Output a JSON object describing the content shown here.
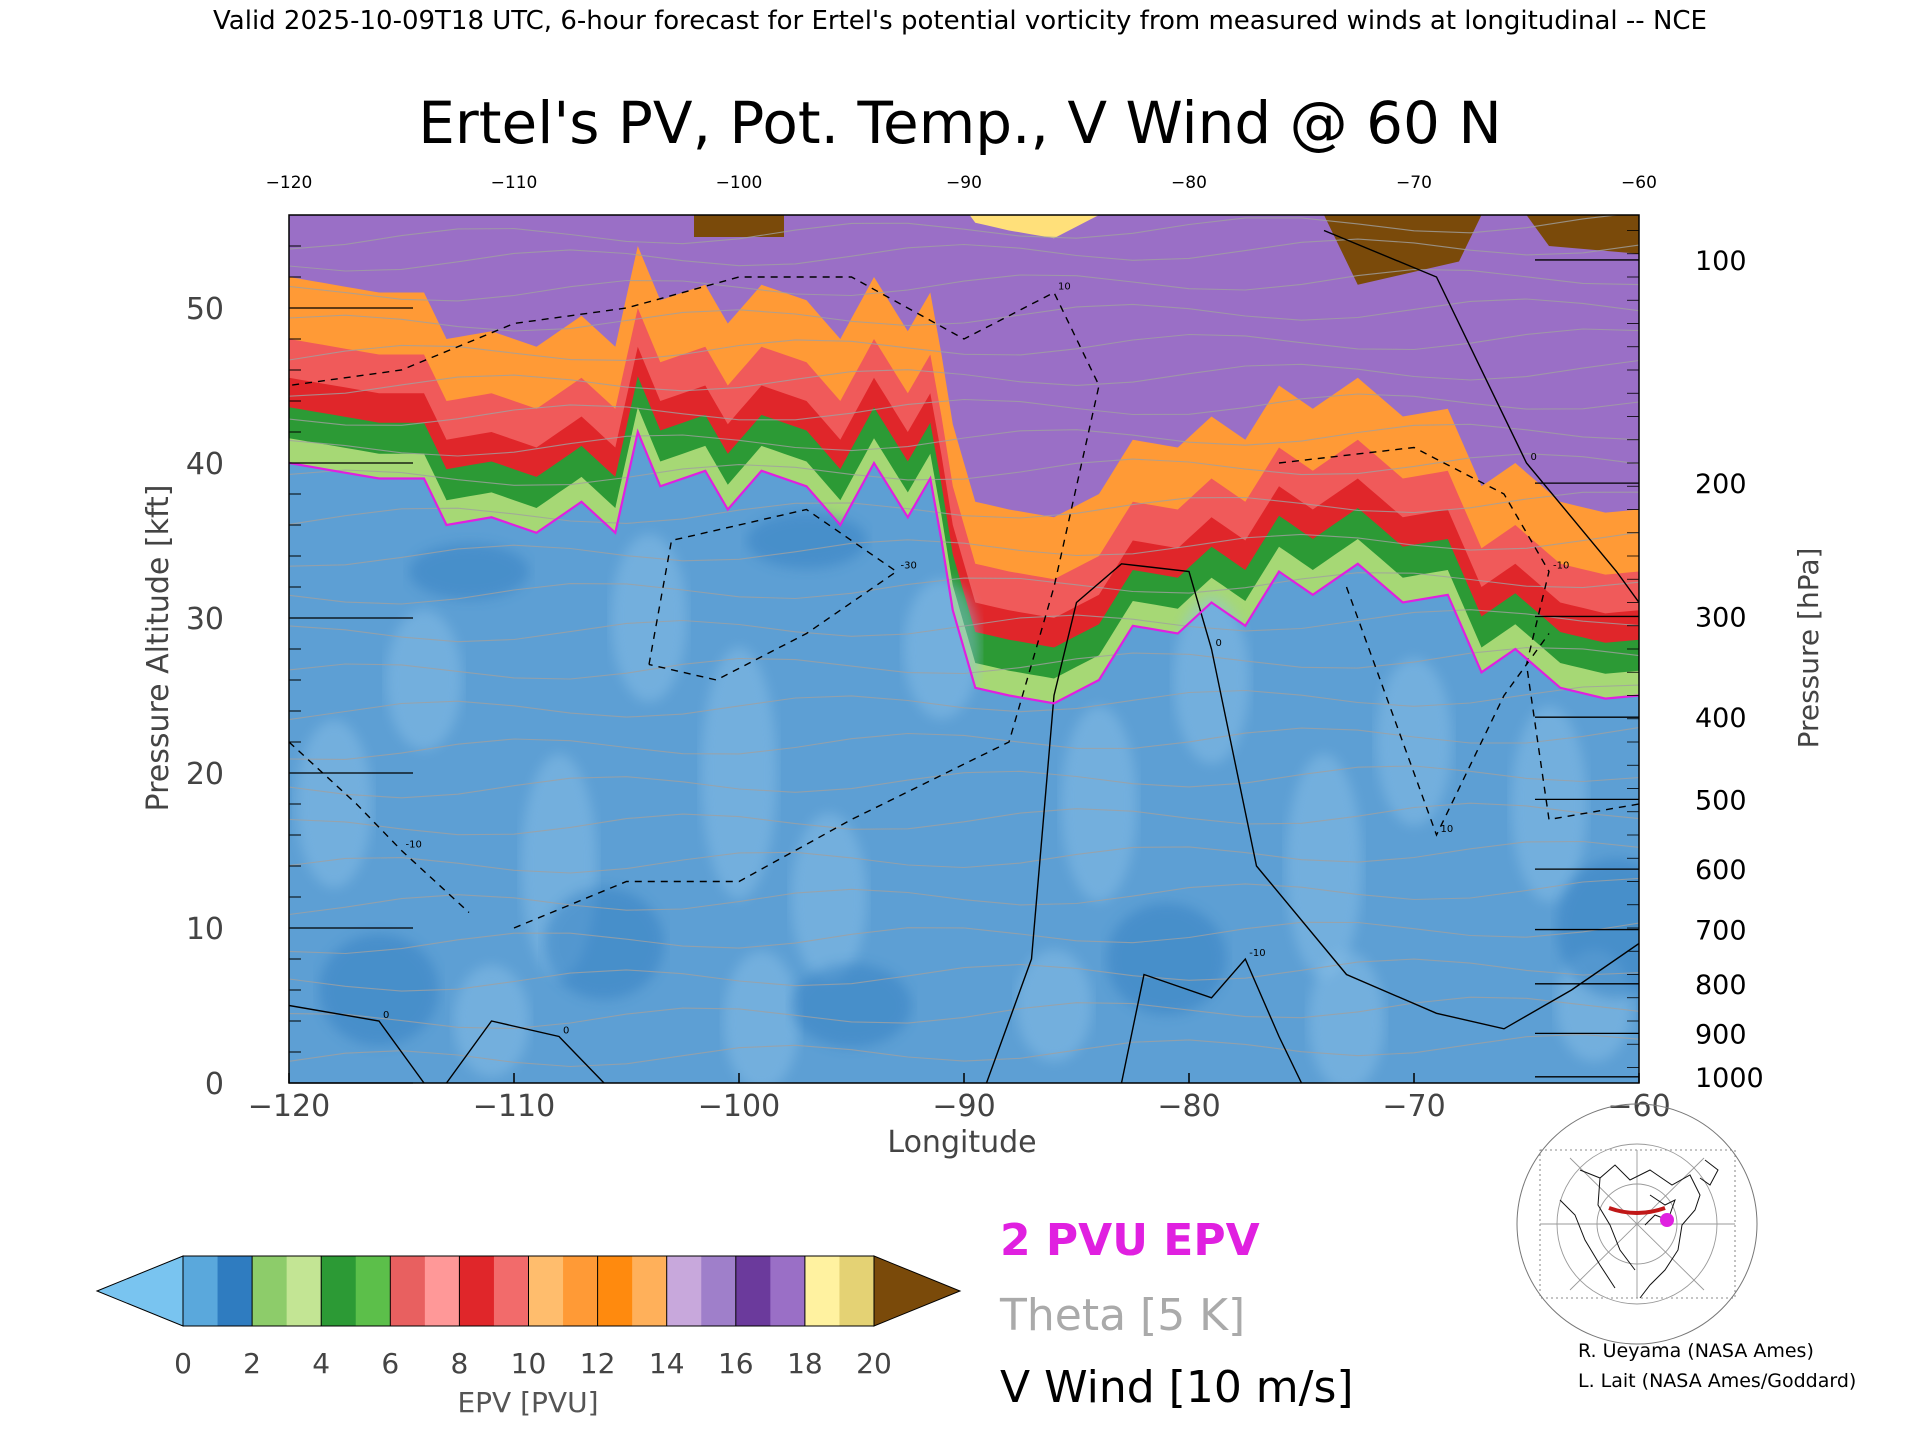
{
  "header": {
    "valid_line": "Valid 2025-10-09T18 UTC, 6-hour forecast for Ertel's potential vorticity from measured winds at longitudinal -- NCE"
  },
  "chart_data": {
    "type": "heatmap",
    "title": "Ertel's PV, Pot. Temp., V Wind @ 60 N",
    "xlabel": "Longitude",
    "ylabel": "Pressure Altitude [kft]",
    "y2label": "Pressure [hPa]",
    "xlim": [
      -120,
      -60
    ],
    "ylim": [
      0,
      56
    ],
    "x_ticks": [
      -120,
      -110,
      -100,
      -90,
      -80,
      -70,
      -60
    ],
    "y_ticks": [
      0,
      10,
      20,
      30,
      40,
      50
    ],
    "pressure_ticks": [
      {
        "hPa": "100",
        "kft": 53.1
      },
      {
        "hPa": "200",
        "kft": 38.7
      },
      {
        "hPa": "300",
        "kft": 30.1
      },
      {
        "hPa": "400",
        "kft": 23.6
      },
      {
        "hPa": "500",
        "kft": 18.3
      },
      {
        "hPa": "600",
        "kft": 13.8
      },
      {
        "hPa": "700",
        "kft": 9.9
      },
      {
        "hPa": "800",
        "kft": 6.4
      },
      {
        "hPa": "900",
        "kft": 3.2
      },
      {
        "hPa": "1000",
        "kft": 0.4
      }
    ],
    "grid": false,
    "tropopause_2pvu_kft": [
      [
        -120,
        40
      ],
      [
        -118,
        39.5
      ],
      [
        -116,
        39
      ],
      [
        -114,
        39
      ],
      [
        -113,
        36
      ],
      [
        -111,
        36.5
      ],
      [
        -109,
        35.5
      ],
      [
        -107,
        37.5
      ],
      [
        -105.5,
        35.5
      ],
      [
        -104.5,
        42
      ],
      [
        -103.5,
        38.5
      ],
      [
        -101.5,
        39.5
      ],
      [
        -100.5,
        37
      ],
      [
        -99,
        39.5
      ],
      [
        -97,
        38.5
      ],
      [
        -95.5,
        36
      ],
      [
        -94,
        40
      ],
      [
        -92.5,
        36.5
      ],
      [
        -91.5,
        39
      ],
      [
        -91,
        35
      ],
      [
        -90.5,
        30.5
      ],
      [
        -89.5,
        25.5
      ],
      [
        -88,
        25
      ],
      [
        -86,
        24.5
      ],
      [
        -84,
        26
      ],
      [
        -82.5,
        29.5
      ],
      [
        -80.5,
        29
      ],
      [
        -79,
        31
      ],
      [
        -77.5,
        29.5
      ],
      [
        -76,
        33
      ],
      [
        -74.5,
        31.5
      ],
      [
        -72.5,
        33.5
      ],
      [
        -70.5,
        31
      ],
      [
        -68.5,
        31.5
      ],
      [
        -67,
        26.5
      ],
      [
        -65.5,
        28
      ],
      [
        -63.5,
        25.5
      ],
      [
        -61.5,
        24.8
      ],
      [
        -60,
        25
      ]
    ],
    "pv_bands": [
      {
        "color": "#b57ad4",
        "top": 56,
        "bottom": 51
      },
      {
        "color": "#ff9020",
        "top": 51.5,
        "bottom": 46
      },
      {
        "color": "#e82a2a",
        "top": 47,
        "bottom": 40
      },
      {
        "color": "#3ea83a",
        "top": 44,
        "bottom": 39
      },
      {
        "color": "#a6d875",
        "top": 41,
        "bottom": 37
      }
    ],
    "theta_lines_kft": [
      2,
      4.5,
      7,
      9.5,
      12,
      14.5,
      17,
      19.5,
      22,
      24.5,
      27,
      29.5,
      32,
      34.5,
      37,
      39.5,
      41.5,
      43.5,
      45.5,
      47.5,
      49.5,
      51.5,
      53.5,
      55
    ],
    "v_wind_contours": [
      {
        "label": "0",
        "style": "solid",
        "points": [
          [
            -89,
            0
          ],
          [
            -87,
            8
          ],
          [
            -86,
            25
          ],
          [
            -85,
            31
          ],
          [
            -83,
            33.5
          ],
          [
            -80,
            33
          ],
          [
            -79,
            28
          ],
          [
            -77,
            14
          ],
          [
            -73,
            7
          ],
          [
            -69,
            4.5
          ],
          [
            -66,
            3.5
          ],
          [
            -63,
            6
          ],
          [
            -60,
            9
          ]
        ]
      },
      {
        "label": "-10",
        "style": "solid",
        "points": [
          [
            -83,
            0
          ],
          [
            -82,
            7
          ],
          [
            -79,
            5.5
          ],
          [
            -77.5,
            8
          ],
          [
            -76,
            3
          ],
          [
            -75,
            0
          ]
        ]
      },
      {
        "label": "0",
        "style": "solid",
        "points": [
          [
            -120,
            5
          ],
          [
            -116,
            4
          ],
          [
            -114,
            0
          ]
        ]
      },
      {
        "label": "0",
        "style": "solid",
        "points": [
          [
            -113,
            0
          ],
          [
            -111,
            4
          ],
          [
            -108,
            3
          ],
          [
            -106,
            0
          ]
        ]
      },
      {
        "label": "0",
        "style": "solid",
        "points": [
          [
            -74,
            55
          ],
          [
            -69,
            52
          ],
          [
            -65,
            40
          ],
          [
            -61,
            33
          ],
          [
            -60,
            31
          ]
        ]
      },
      {
        "label": "10",
        "style": "dashed",
        "points": [
          [
            -110,
            10
          ],
          [
            -105,
            13
          ],
          [
            -100,
            13
          ],
          [
            -95,
            17
          ],
          [
            -88,
            22
          ],
          [
            -86,
            32
          ],
          [
            -84,
            45
          ],
          [
            -86,
            51
          ],
          [
            -90,
            48
          ],
          [
            -95,
            52
          ],
          [
            -100,
            52
          ],
          [
            -105,
            50
          ],
          [
            -110,
            49
          ],
          [
            -115,
            46
          ],
          [
            -120,
            45
          ]
        ]
      },
      {
        "label": "-10",
        "style": "dashed",
        "points": [
          [
            -120,
            22
          ],
          [
            -117,
            18
          ],
          [
            -115,
            15
          ],
          [
            -112,
            11
          ]
        ]
      },
      {
        "label": "-30",
        "style": "dashed",
        "points": [
          [
            -104,
            27
          ],
          [
            -103,
            35
          ],
          [
            -97,
            37
          ],
          [
            -93,
            33
          ],
          [
            -97,
            29
          ],
          [
            -101,
            26
          ],
          [
            -104,
            27
          ]
        ]
      },
      {
        "label": "-10",
        "style": "dashed",
        "points": [
          [
            -76,
            40
          ],
          [
            -70,
            41
          ],
          [
            -66,
            38
          ],
          [
            -64,
            33
          ],
          [
            -65,
            27
          ],
          [
            -64,
            17
          ],
          [
            -60,
            18
          ]
        ]
      },
      {
        "label": "10",
        "style": "dashed",
        "points": [
          [
            -73,
            32
          ],
          [
            -71,
            24
          ],
          [
            -69,
            16
          ],
          [
            -66,
            25
          ],
          [
            -64,
            29
          ]
        ]
      }
    ]
  },
  "colorbar": {
    "label": "EPV [PVU]",
    "tick_labels": [
      "0",
      "2",
      "4",
      "6",
      "8",
      "10",
      "12",
      "14",
      "16",
      "18",
      "20"
    ],
    "colors": [
      "#79c4f0",
      "#5aa8dc",
      "#2f7cc0",
      "#8dcc6a",
      "#c3e594",
      "#2c9a35",
      "#5cbf4a",
      "#e86060",
      "#ff9898",
      "#e0262a",
      "#f26b6b",
      "#ffbd6d",
      "#ff9a36",
      "#ff8a0e",
      "#ffb05a",
      "#c8a8dc",
      "#9f7fca",
      "#6b3a9c",
      "#9a6fc6",
      "#fff2a0",
      "#e4d274",
      "#7a4a0a"
    ]
  },
  "legend": {
    "pv_label": "2 PVU EPV",
    "theta_label": "Theta [5 K]",
    "wind_label": "V Wind [10 m/s]"
  },
  "colors": {
    "tropopause": "#e020e0",
    "theta": "#a0a0a0",
    "wind": "#000000",
    "stratosphere_low": "#4f9ad3",
    "troposphere_base": "#6aa8d8"
  },
  "credits": {
    "line1": "R. Ueyama (NASA Ames)",
    "line2": "L. Lait (NASA Ames/Goddard)"
  }
}
